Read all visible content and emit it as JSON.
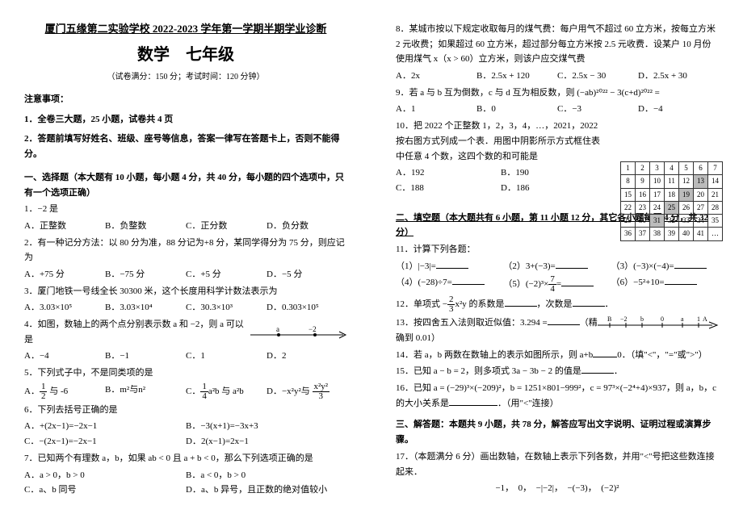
{
  "header": {
    "school_title": "厦门五缘第二实验学校 2022-2023 学年第一学期半期学业诊断",
    "subject": "数学　七年级",
    "meta": "（试卷满分：150 分；考试时间：120 分钟）"
  },
  "notice_h": "注意事项：",
  "notice1": "1．全卷三大题，25 小题，试卷共 4 页",
  "notice2": "2．答题前填写好姓名、班级、座号等信息，答案一律写在答题卡上，否则不能得分。",
  "sec1_h": "一、选择题（本大题有 10 小题，每小题 4 分，共 40 分，每小题的四个选项中，只有一个选项正确）",
  "q1": "1．−2 是",
  "q1a": "A．正整数",
  "q1b": "B．负整数",
  "q1c": "C．正分数",
  "q1d": "D．负分数",
  "q2": "2．有一种记分方法：以 80 分为准，88 分记为+8 分，某同学得分为 75 分，则应记为",
  "q2a": "A．+75 分",
  "q2b": "B．−75 分",
  "q2c": "C．+5 分",
  "q2d": "D．−5 分",
  "q3": "3．厦门地铁一号线全长 30300 米，这个长度用科学计数法表示为",
  "q3a": "A．3.03×10⁵",
  "q3b": "B．3.03×10⁴",
  "q3c": "C．30.3×10³",
  "q3d": "D．0.303×10⁵",
  "q4": "4．如图，数轴上的两个点分别表示数 a 和 −2，则 a 可以是",
  "q4a": "A．−4",
  "q4b": "B．−1",
  "q4c": "C．1",
  "q4d": "D．2",
  "q5": "5．下列式子中，不是同类项的是",
  "q5b_label": "m²与n²",
  "q5post": "6．下列去括号正确的是",
  "q6a": "A．+(2x−1)=−2x−1",
  "q6b": "B．−3(x+1)=−3x+3",
  "q6c": "C．−(2x−1)=−2x−1",
  "q6d": "D．2(x−1)=2x−1",
  "q7": "7．已知两个有理数 a，b，如果 ab < 0 且 a + b < 0，那么下列选项正确的是",
  "q7a": "A．a > 0，b > 0",
  "q7b": "B．a < 0，b > 0",
  "q7c": "C．a、b 同号",
  "q7d": "D．a、b 异号，且正数的绝对值较小",
  "q8": "8．某城市按以下规定收取每月的煤气费：每户用气不超过 60 立方米，按每立方米 2 元收费；如果超过 60 立方米，超过部分每立方米按 2.5 元收费．设某户 10 月份使用煤气 x（x > 60）立方米，则该户应交煤气费",
  "q8a": "A．2x",
  "q8b": "B．2.5x + 120",
  "q8c": "C．2.5x − 30",
  "q8d": "D．2.5x + 30",
  "q9": "9．若 a 与 b 互为倒数，c 与 d 互为相反数，则 (−ab)²⁰²² − 3(c+d)²⁰²² =",
  "q9a": "A．1",
  "q9b": "B．0",
  "q9c": "C．−3",
  "q9d": "D．−4",
  "q10": "10．把 2022 个正整数 1，2，3，4，…，2021，2022 按右图方式列成一个表．用图中阴影所示方式框住表中任意 4 个数，这四个数的和可能是",
  "q10a": "A．192",
  "q10b": "B．190",
  "q10c": "C．188",
  "q10d": "D．186",
  "grid": [
    [
      "1",
      "2",
      "3",
      "4",
      "5",
      "6",
      "7"
    ],
    [
      "8",
      "9",
      "10",
      "11",
      "12",
      "13",
      "14"
    ],
    [
      "15",
      "16",
      "17",
      "18",
      "19",
      "20",
      "21"
    ],
    [
      "22",
      "23",
      "24",
      "25",
      "26",
      "27",
      "28"
    ],
    [
      "29",
      "30",
      "31",
      "32",
      "33",
      "34",
      "35"
    ],
    [
      "36",
      "37",
      "38",
      "39",
      "40",
      "41",
      "…"
    ]
  ],
  "grid_shaded": [
    "13",
    "19",
    "25",
    "31"
  ],
  "sec2_h": "二、填空题（本大题共有 6 小题，第 11 小题 12 分，其它各小题每题 4 分，共 32 分）",
  "q11": "11．计算下列各题：",
  "q11_1": "（1）|−3|=",
  "q11_2": "（2）3+(−3)=",
  "q11_3": "（3）(−3)×(−4)=",
  "q11_4": "（4）(−28)÷7=",
  "q11_5_post": "=",
  "q11_6": "（6）−5²+10=",
  "q12": "的系数是",
  "q12b": "，次数是",
  "q13a": "13．按四舍五入法则取近似值：3.294 =",
  "q13b": "（精确到 0.01）",
  "q13c": "．−2",
  "q13d": "b",
  "q13e": "0",
  "q13f": "a",
  "q13g": "1",
  "q14": "14．若 a，b 两数在数轴上的表示如图所示，则 a+b",
  "q14b": "0．（填\"<\"，\"=\"或\">\"）",
  "q15": "15．已知 a − b = 2，则多项式 3a − 3b − 2 的值是",
  "q16": "16．已知 a = (−29)³×(−209)²，b = 1251×801−999²，c = 97³×(−2⁴+4)×937，则 a，b，c 的大小关系是",
  "q16b": "．（用\"<\"连接）",
  "sec3_h": "三、解答题：本题共 9 小题，共 78 分，解答应写出文字说明、证明过程或演算步骤。",
  "q17": "17．（本题满分 6 分）画出数轴，在数轴上表示下列各数，并用\"<\"号把这些数连接起来．",
  "q17_nums": "−1，　0，　−|−2|，　−(−3)，　(−2)²"
}
